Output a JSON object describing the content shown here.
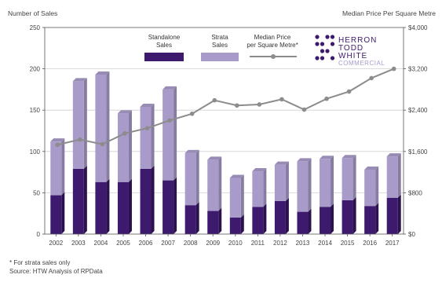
{
  "chart_data": {
    "type": "bar",
    "categories": [
      "2002",
      "2003",
      "2004",
      "2005",
      "2006",
      "2007",
      "2008",
      "2009",
      "2010",
      "2011",
      "2012",
      "2013",
      "2014",
      "2015",
      "2016",
      "2017"
    ],
    "series": [
      {
        "name": "Standalone Sales",
        "kind": "bar",
        "axis": "left",
        "color": "#3d1a6e",
        "values": [
          47,
          79,
          63,
          63,
          79,
          65,
          35,
          28,
          20,
          33,
          40,
          27,
          33,
          41,
          34,
          44
        ]
      },
      {
        "name": "Strata Sales",
        "kind": "bar",
        "axis": "left",
        "color": "#a99bc9",
        "values": [
          65,
          106,
          130,
          83,
          75,
          110,
          63,
          62,
          48,
          43,
          44,
          61,
          58,
          51,
          44,
          50
        ]
      },
      {
        "name": "Median Price per Square Metre*",
        "kind": "line",
        "axis": "right",
        "color": "#8c8c8c",
        "values": [
          1730,
          1830,
          1740,
          1950,
          2050,
          2200,
          2330,
          2590,
          2490,
          2510,
          2610,
          2410,
          2620,
          2760,
          3020,
          3200
        ]
      }
    ],
    "ylabel": "Number of Sales",
    "y2label": "Median Price Per Square Metre",
    "ylim": [
      0,
      250
    ],
    "yticks": [
      0,
      50,
      100,
      150,
      200,
      250
    ],
    "y2lim": [
      0,
      4000
    ],
    "y2ticks": [
      "$0",
      "$800",
      "$1,600",
      "$2,400",
      "$3,200",
      "$4,000"
    ],
    "grid": true,
    "legend_position": "top-right"
  },
  "legend": {
    "standalone_line1": "Standalone",
    "standalone_line2": "Sales",
    "strata_line1": "Strata",
    "strata_line2": "Sales",
    "median_line1": "Median Price",
    "median_line2": "per Square Metre*"
  },
  "logo": {
    "line1": "HERRON",
    "line2": "TODD",
    "line3": "WHITE",
    "line4": "COMMERCIAL",
    "dot_color": "#3d1a6e"
  },
  "footnote": "* For strata sales only",
  "source": "Source: HTW Analysis of RPData"
}
